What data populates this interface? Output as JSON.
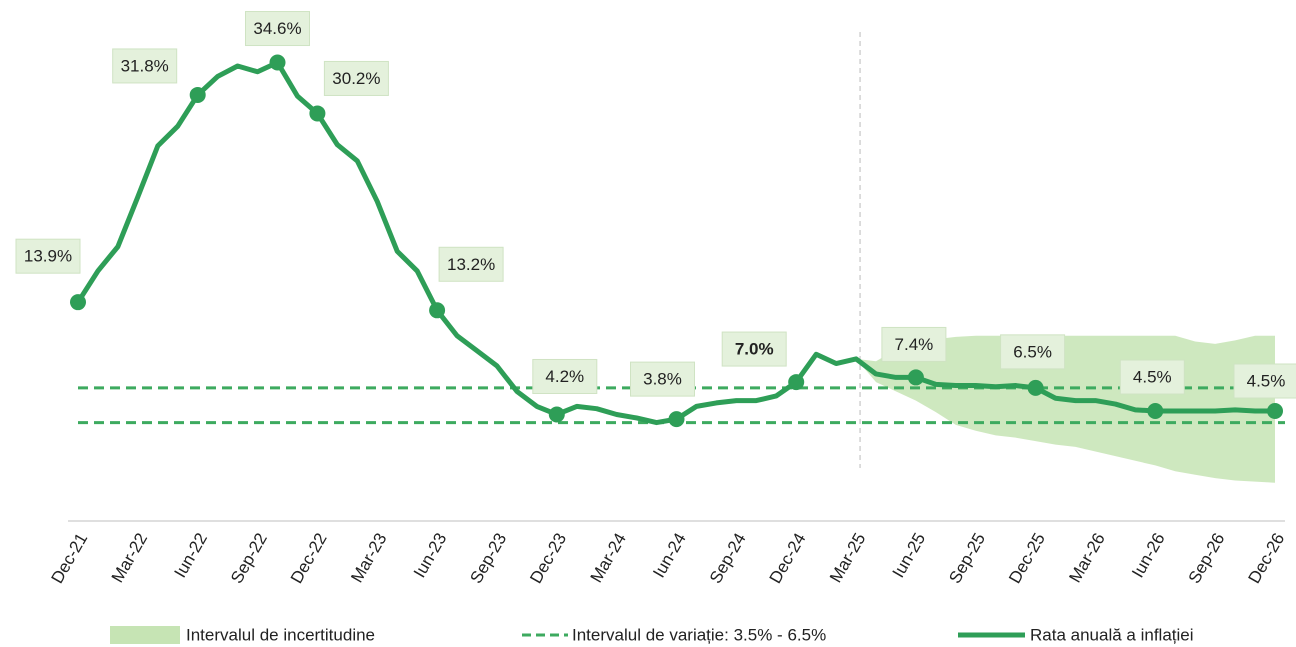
{
  "chart_data": {
    "type": "line",
    "categories": [
      "Dec-21",
      null,
      null,
      "Mar-22",
      null,
      null,
      "Iun-22",
      null,
      null,
      "Sep-22",
      null,
      null,
      "Dec-22",
      null,
      null,
      "Mar-23",
      null,
      null,
      "Iun-23",
      null,
      null,
      "Sep-23",
      null,
      null,
      "Dec-23",
      null,
      null,
      "Mar-24",
      null,
      null,
      "Iun-24",
      null,
      null,
      "Sep-24",
      null,
      null,
      "Dec-24",
      null,
      null,
      "Mar-25",
      null,
      null,
      "Iun-25",
      null,
      null,
      "Sep-25",
      null,
      null,
      "Dec-25",
      null,
      null,
      "Mar-26",
      null,
      null,
      "Iun-26",
      null,
      null,
      "Sep-26",
      null,
      null,
      "Dec-26"
    ],
    "series": [
      {
        "name": "Rata anuală a inflației",
        "color": "#2e9e57",
        "values": [
          13.9,
          16.6,
          18.7,
          23.0,
          27.4,
          29.1,
          31.8,
          33.4,
          34.3,
          33.8,
          34.6,
          31.7,
          30.2,
          27.5,
          26.1,
          22.6,
          18.3,
          16.6,
          13.2,
          11.0,
          9.7,
          8.4,
          6.2,
          4.9,
          4.2,
          4.9,
          4.7,
          4.2,
          3.9,
          3.5,
          3.8,
          4.9,
          5.2,
          5.4,
          5.4,
          5.8,
          7.0,
          9.4,
          8.6,
          9.0,
          7.7,
          7.4,
          7.4,
          6.8,
          6.7,
          6.7,
          6.6,
          6.7,
          6.5,
          5.6,
          5.4,
          5.4,
          5.1,
          4.6,
          4.5,
          4.5,
          4.5,
          4.5,
          4.6,
          4.5,
          4.5
        ],
        "value_labels": [
          "13.9%",
          null,
          null,
          null,
          null,
          null,
          "31.8%",
          null,
          null,
          null,
          "34.6%",
          null,
          "30.2%",
          null,
          null,
          null,
          null,
          null,
          "13.2%",
          null,
          null,
          null,
          null,
          null,
          "4.2%",
          null,
          null,
          null,
          null,
          null,
          "3.8%",
          null,
          null,
          null,
          null,
          null,
          "7.0%",
          null,
          null,
          null,
          null,
          null,
          "7.4%",
          null,
          null,
          null,
          null,
          null,
          "6.5%",
          null,
          null,
          null,
          null,
          null,
          "4.5%",
          null,
          null,
          null,
          null,
          null,
          "4.5%"
        ]
      }
    ],
    "bold_value_labels": [
      36
    ],
    "band": {
      "name": "Intervalul de incertitudine",
      "color": "#c6e4b4",
      "upper": [
        null,
        null,
        null,
        null,
        null,
        null,
        null,
        null,
        null,
        null,
        null,
        null,
        null,
        null,
        null,
        null,
        null,
        null,
        null,
        null,
        null,
        null,
        null,
        null,
        null,
        null,
        null,
        null,
        null,
        null,
        null,
        null,
        null,
        null,
        null,
        null,
        null,
        null,
        null,
        9.0,
        8.8,
        9.8,
        10.5,
        10.7,
        10.9,
        11.0,
        11.0,
        11.0,
        11.0,
        11.0,
        11.0,
        11.0,
        11.0,
        11.0,
        11.0,
        11.0,
        10.5,
        10.3,
        10.6,
        11.0,
        11.0
      ],
      "lower": [
        null,
        null,
        null,
        null,
        null,
        null,
        null,
        null,
        null,
        null,
        null,
        null,
        null,
        null,
        null,
        null,
        null,
        null,
        null,
        null,
        null,
        null,
        null,
        null,
        null,
        null,
        null,
        null,
        null,
        null,
        null,
        null,
        null,
        null,
        null,
        null,
        null,
        null,
        null,
        9.0,
        7.0,
        6.2,
        5.4,
        4.4,
        3.3,
        2.8,
        2.4,
        2.2,
        1.9,
        1.6,
        1.4,
        1.0,
        0.6,
        0.2,
        -0.2,
        -0.7,
        -1.0,
        -1.3,
        -1.5,
        -1.6,
        -1.7
      ]
    },
    "reference_lines": {
      "name": "Intervalul de variație: 3.5% - 6.5%",
      "color": "#3daa5f",
      "values": [
        3.5,
        6.5
      ]
    },
    "divider": "Mar-25",
    "ylim": [
      -5,
      40
    ]
  }
}
